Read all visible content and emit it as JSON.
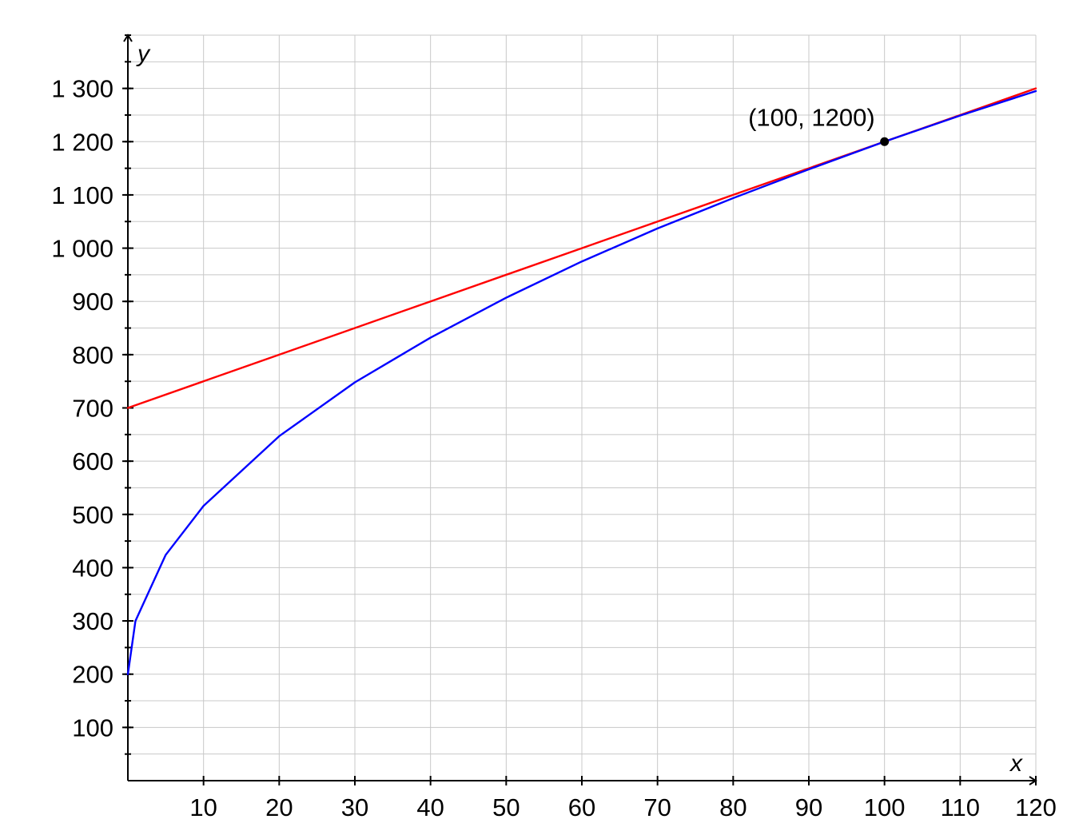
{
  "chart_data": {
    "type": "line",
    "title": "",
    "xlabel": "x",
    "ylabel": "y",
    "xlim": [
      0,
      120
    ],
    "ylim": [
      0,
      1400
    ],
    "grid": true,
    "x_ticks": [
      10,
      20,
      30,
      40,
      50,
      60,
      70,
      80,
      90,
      100,
      110,
      120
    ],
    "x_tick_labels": [
      "10",
      "20",
      "30",
      "40",
      "50",
      "60",
      "70",
      "80",
      "90",
      "100",
      "110",
      "120"
    ],
    "y_ticks": [
      100,
      200,
      300,
      400,
      500,
      600,
      700,
      800,
      900,
      1000,
      1100,
      1200,
      1300
    ],
    "y_tick_labels": [
      "100",
      "200",
      "300",
      "400",
      "500",
      "600",
      "700",
      "800",
      "900",
      "1 000",
      "1 100",
      "1 200",
      "1 300"
    ],
    "series": [
      {
        "color": "#ff0000",
        "x": [
          0,
          20,
          40,
          60,
          80,
          100,
          120
        ],
        "y": [
          700,
          800,
          900,
          1000,
          1100,
          1200,
          1300
        ]
      },
      {
        "color": "#0000ff",
        "x": [
          0,
          1,
          5,
          10,
          20,
          30,
          40,
          50,
          60,
          70,
          80,
          90,
          100,
          110,
          120
        ],
        "y": [
          200,
          300,
          424,
          516,
          647,
          748,
          832,
          907,
          975,
          1037,
          1094,
          1148,
          1200,
          1249,
          1295
        ]
      }
    ],
    "points": [
      {
        "x": 100,
        "y": 1200,
        "label": "(100, 1200)",
        "color": "#000000"
      }
    ]
  }
}
